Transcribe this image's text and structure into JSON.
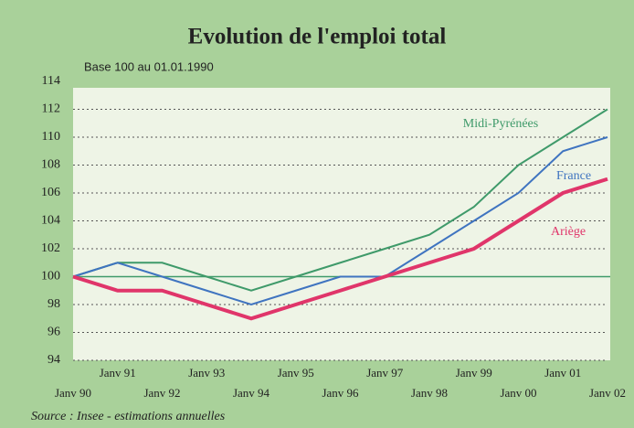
{
  "chart_data": {
    "type": "line",
    "title": "Evolution de l'emploi total",
    "subtitle": "Base 100 au 01.01.1990",
    "source": "Source : Insee - estimations annuelles",
    "categories": [
      "Janv 90",
      "Janv 91",
      "Janv 92",
      "Janv 93",
      "Janv 94",
      "Janv 95",
      "Janv 96",
      "Janv 97",
      "Janv 98",
      "Janv 99",
      "Janv 00",
      "Janv 01",
      "Janv 02"
    ],
    "series": [
      {
        "name": "Midi-Pyrénées",
        "color": "#3f9a6a",
        "values": [
          100,
          101,
          101,
          100,
          99,
          100,
          101,
          102,
          103,
          105,
          108,
          110,
          112
        ]
      },
      {
        "name": "France",
        "color": "#3f74c0",
        "values": [
          100,
          101,
          100,
          99,
          98,
          99,
          100,
          100,
          102,
          104,
          106,
          109,
          110
        ]
      },
      {
        "name": "Ariège",
        "color": "#e0356a",
        "values": [
          100,
          99,
          99,
          98,
          97,
          98,
          99,
          100,
          101,
          102,
          104,
          106,
          107
        ]
      }
    ],
    "baseline": 100,
    "ylim": [
      94,
      114
    ],
    "yticks": [
      94,
      96,
      98,
      100,
      102,
      104,
      106,
      108,
      110,
      112,
      114
    ],
    "grid": true
  }
}
